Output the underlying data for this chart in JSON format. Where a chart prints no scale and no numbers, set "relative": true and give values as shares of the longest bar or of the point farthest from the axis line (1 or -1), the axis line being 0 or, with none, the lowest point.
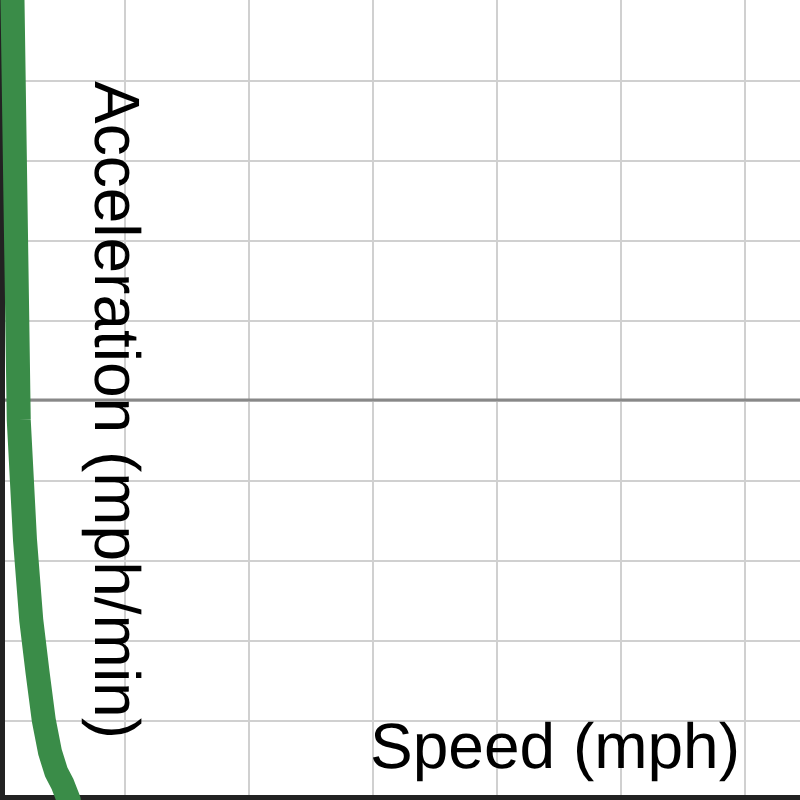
{
  "chart_data": {
    "type": "line",
    "relative": true,
    "xlabel": "Speed (mph)",
    "ylabel": "Acceleration (mph/min)",
    "grid": true,
    "categories": [
      null,
      null,
      null,
      null,
      null,
      null,
      null,
      null,
      null,
      null,
      null,
      null,
      null,
      null,
      null,
      null,
      null,
      null,
      null,
      null,
      null,
      null,
      null,
      null,
      null,
      null,
      null,
      null,
      null,
      null,
      null,
      null,
      null,
      null,
      null,
      null,
      null,
      null,
      null,
      null,
      null,
      null,
      null,
      null,
      null,
      null,
      null,
      null,
      null,
      null,
      null,
      null,
      null,
      null,
      null,
      null,
      null,
      null,
      null,
      null,
      null,
      null,
      null,
      null,
      null,
      null,
      null,
      null,
      null,
      null,
      null,
      null,
      null,
      null,
      null,
      null,
      null,
      null,
      null,
      null,
      null,
      null,
      null,
      null,
      null,
      null,
      null,
      null,
      null,
      null,
      null,
      null,
      null,
      null,
      null,
      null,
      null,
      null,
      null,
      null,
      null,
      null,
      null,
      null,
      null,
      null,
      null,
      null,
      null,
      null,
      null,
      null,
      null,
      null,
      null,
      null,
      null,
      null,
      null,
      null,
      null,
      null,
      null,
      null,
      null,
      null,
      null,
      null,
      null
    ],
    "series": [
      {
        "color": "#3a8c48",
        "values": [
          null,
          null,
          1,
          -0.05,
          -0.35,
          -0.55,
          -0.68,
          -0.8,
          -0.88,
          -0.93,
          -0.96,
          -1,
          null,
          null,
          null,
          null,
          null,
          null,
          null,
          null,
          null,
          null,
          null,
          null,
          null,
          null,
          null,
          null,
          null,
          null,
          null,
          null,
          null,
          null,
          null,
          null,
          null,
          null,
          null,
          null,
          null,
          null,
          null,
          null,
          null,
          null,
          null,
          null,
          null,
          null,
          null,
          null,
          null,
          null,
          null,
          null,
          null,
          null,
          null,
          null,
          null,
          null,
          null,
          null,
          null,
          null,
          null,
          null,
          null,
          null,
          null,
          null,
          null,
          null,
          null,
          null,
          null,
          null,
          null,
          null,
          null,
          null,
          null,
          null,
          null,
          null,
          null,
          null,
          null,
          null,
          null,
          null,
          null,
          null,
          null,
          null,
          null,
          null,
          null,
          null,
          null,
          null,
          null,
          null,
          null,
          null,
          null,
          null,
          null,
          null,
          null,
          null,
          null,
          null,
          null,
          null,
          null,
          null,
          null,
          null,
          null,
          null,
          null,
          null,
          null,
          null,
          null,
          null,
          null
        ]
      }
    ]
  }
}
